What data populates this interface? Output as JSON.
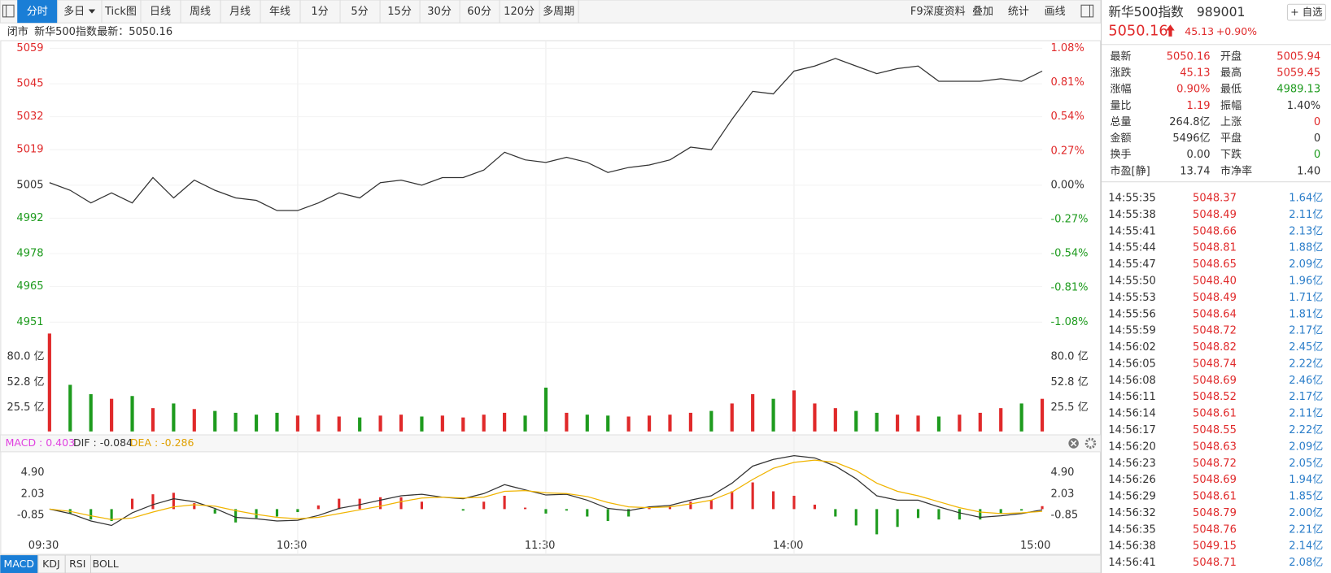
{
  "toolbar": {
    "tabs": [
      "分时",
      "多日",
      "Tick图",
      "日线",
      "周线",
      "月线",
      "年线",
      "1分",
      "5分",
      "15分",
      "30分",
      "60分",
      "120分",
      "多周期"
    ],
    "right_tabs": [
      "F9深度资料",
      "叠加",
      "统计",
      "画线"
    ]
  },
  "status": {
    "state": "闭市",
    "name": "新华500指数",
    "latest": "最新：5050.16"
  },
  "chart_data": [
    {
      "type": "line",
      "color": "#333333",
      "up_color": "#e0292a",
      "down_color": "#1e9b1e",
      "values": [
        5006,
        5003,
        4998,
        5002,
        4998,
        5008,
        5000,
        5007,
        5003,
        5000,
        4999,
        4995,
        4995,
        4998,
        5002,
        5000,
        5006,
        5007,
        5005,
        5008,
        5008,
        5011,
        5018,
        5015,
        5014,
        5016,
        5014,
        5010,
        5012,
        5013,
        5015,
        5020,
        5019,
        5031,
        5042,
        5041,
        5050,
        5052,
        5055,
        5052,
        5049,
        5051,
        5052,
        5046,
        5046,
        5046,
        5047,
        5046,
        5050
      ],
      "ylim": [
        4951,
        5059
      ],
      "yticks": [
        5059,
        5045,
        5032,
        5019,
        5005,
        4992,
        4978,
        4965,
        4951
      ],
      "y2lim": [
        -1.08,
        1.08
      ],
      "y2ticks": [
        {
          "value": 1.08,
          "label": "1.08%"
        },
        {
          "value": 0.81,
          "label": "0.81%"
        },
        {
          "value": 0.54,
          "label": "0.54%"
        },
        {
          "value": 0.27,
          "label": "0.27%"
        },
        {
          "value": 0,
          "label": "0.00%"
        },
        {
          "value": -0.27,
          "label": "-0.27%"
        },
        {
          "value": -0.54,
          "label": "-0.54%"
        },
        {
          "value": -0.81,
          "label": "-0.81%"
        },
        {
          "value": -1.08,
          "label": "-1.08%"
        }
      ]
    },
    {
      "type": "bar",
      "up_color": "#e0292a",
      "down_color": "#1e9b1e",
      "values": [
        105,
        50,
        40,
        35,
        38,
        25,
        30,
        24,
        22,
        20,
        18,
        20,
        17,
        18,
        16,
        15,
        17,
        18,
        16,
        17,
        15,
        18,
        20,
        17,
        47,
        20,
        18,
        17,
        16,
        17,
        18,
        20,
        22,
        30,
        40,
        35,
        44,
        30,
        25,
        22,
        20,
        18,
        17,
        16,
        18,
        20,
        25,
        30,
        35
      ],
      "ylim": [
        0,
        108.2
      ],
      "yticks": [
        {
          "value": 80,
          "label": "80.0 亿"
        },
        {
          "value": 52.8,
          "label": "52.8 亿"
        },
        {
          "value": 25.5,
          "label": "25.5 亿"
        }
      ]
    },
    {
      "type": "macd",
      "indicator_labels": [
        "MACD : 0.403",
        "DIF : -0.084",
        "DEA : -0.286"
      ],
      "categories": [
        "09:30",
        null,
        null,
        null,
        null,
        null,
        null,
        null,
        null,
        null,
        null,
        null,
        "10:30",
        null,
        null,
        null,
        null,
        null,
        null,
        null,
        null,
        null,
        null,
        null,
        "11:30",
        null,
        null,
        null,
        null,
        null,
        null,
        null,
        null,
        null,
        null,
        null,
        "14:00",
        null,
        null,
        null,
        null,
        null,
        null,
        null,
        null,
        null,
        null,
        null,
        "15:00"
      ],
      "ylim": [
        -4.5,
        7.5
      ],
      "yticks": [
        {
          "value": 4.9,
          "label": "4.90"
        },
        2.03,
        -0.85
      ],
      "up_color": "#e0292a",
      "down_color": "#1e9b1e",
      "series": [
        {
          "color": "#333333",
          "values": [
            0,
            -0.6,
            -1.6,
            -2.2,
            -0.5,
            0.6,
            1.4,
            1.0,
            0.1,
            -1.1,
            -1.3,
            -1.6,
            -1.5,
            -0.85,
            0.1,
            0.6,
            1.2,
            1.8,
            2.0,
            1.6,
            1.4,
            2.1,
            3.3,
            2.6,
            1.9,
            2.0,
            1.2,
            0.1,
            -0.2,
            0.3,
            0.5,
            1.2,
            1.8,
            3.5,
            5.8,
            6.7,
            7.2,
            6.9,
            5.8,
            4.1,
            1.8,
            1.2,
            1.2,
            0.3,
            -0.5,
            -1.1,
            -0.9,
            -0.6,
            -0.1
          ]
        },
        {
          "color": "#f0b400",
          "values": [
            0,
            -0.3,
            -0.9,
            -1.4,
            -1.2,
            -0.4,
            0.3,
            0.6,
            0.4,
            -0.2,
            -0.7,
            -1.1,
            -1.3,
            -1.1,
            -0.6,
            -0.1,
            0.4,
            1.0,
            1.5,
            1.6,
            1.5,
            1.6,
            2.4,
            2.5,
            2.2,
            2.1,
            1.7,
            0.9,
            0.3,
            0.2,
            0.3,
            0.7,
            1.2,
            2.3,
            4.0,
            5.5,
            6.3,
            6.6,
            6.3,
            5.2,
            3.5,
            2.4,
            1.8,
            1.0,
            0.2,
            -0.4,
            -0.6,
            -0.5,
            -0.3
          ]
        }
      ],
      "bars": [
        0,
        -0.6,
        -1.4,
        -1.6,
        1.4,
        2.0,
        2.2,
        0.8,
        -0.6,
        -1.8,
        -1.2,
        -1.0,
        -0.4,
        0.5,
        1.4,
        1.4,
        1.6,
        1.6,
        1.0,
        0,
        -0.2,
        1.0,
        1.8,
        0.2,
        -0.6,
        -0.2,
        -1.0,
        -1.6,
        -1.0,
        0.2,
        0.4,
        1.0,
        1.2,
        2.4,
        3.6,
        2.4,
        1.8,
        0.6,
        -1.0,
        -2.2,
        -3.4,
        -2.4,
        -1.2,
        -1.4,
        -1.4,
        -1.4,
        -0.6,
        -0.2,
        0.4
      ]
    }
  ],
  "indicator_tabs": [
    "MACD",
    "KDJ",
    "RSI",
    "BOLL"
  ],
  "quote": {
    "name": "新华500指数",
    "code": "989001",
    "watch": "+ 自选",
    "price": "5050.16",
    "change": "45.13",
    "change_pct": "+0.90%",
    "rows": [
      [
        "最新",
        "5050.16",
        "开盘",
        "5005.94"
      ],
      [
        "涨跌",
        "45.13",
        "最高",
        "5059.45"
      ],
      [
        "涨幅",
        "0.90%",
        "最低",
        "4989.13"
      ],
      [
        "量比",
        "1.19",
        "振幅",
        "1.40%"
      ],
      [
        "总量",
        "264.8亿",
        "上涨",
        "0"
      ],
      [
        "金额",
        "5496亿",
        "平盘",
        "0"
      ],
      [
        "换手",
        "0.00",
        "下跌",
        "0"
      ],
      [
        "市盈[静]",
        "13.74",
        "市净率",
        "1.40"
      ]
    ]
  },
  "trades": [
    [
      "14:55:35",
      "5048.37",
      "1.64亿"
    ],
    [
      "14:55:38",
      "5048.49",
      "2.11亿"
    ],
    [
      "14:55:41",
      "5048.66",
      "2.13亿"
    ],
    [
      "14:55:44",
      "5048.81",
      "1.88亿"
    ],
    [
      "14:55:47",
      "5048.65",
      "2.09亿"
    ],
    [
      "14:55:50",
      "5048.40",
      "1.96亿"
    ],
    [
      "14:55:53",
      "5048.49",
      "1.71亿"
    ],
    [
      "14:55:56",
      "5048.64",
      "1.81亿"
    ],
    [
      "14:55:59",
      "5048.72",
      "2.17亿"
    ],
    [
      "14:56:02",
      "5048.82",
      "2.45亿"
    ],
    [
      "14:56:05",
      "5048.74",
      "2.22亿"
    ],
    [
      "14:56:08",
      "5048.69",
      "2.46亿"
    ],
    [
      "14:56:11",
      "5048.52",
      "2.17亿"
    ],
    [
      "14:56:14",
      "5048.61",
      "2.11亿"
    ],
    [
      "14:56:17",
      "5048.55",
      "2.22亿"
    ],
    [
      "14:56:20",
      "5048.63",
      "2.09亿"
    ],
    [
      "14:56:23",
      "5048.72",
      "2.05亿"
    ],
    [
      "14:56:26",
      "5048.69",
      "1.94亿"
    ],
    [
      "14:56:29",
      "5048.61",
      "1.85亿"
    ],
    [
      "14:56:32",
      "5048.79",
      "2.00亿"
    ],
    [
      "14:56:35",
      "5048.76",
      "2.21亿"
    ],
    [
      "14:56:38",
      "5049.15",
      "2.14亿"
    ],
    [
      "14:56:41",
      "5048.71",
      "2.08亿"
    ]
  ]
}
